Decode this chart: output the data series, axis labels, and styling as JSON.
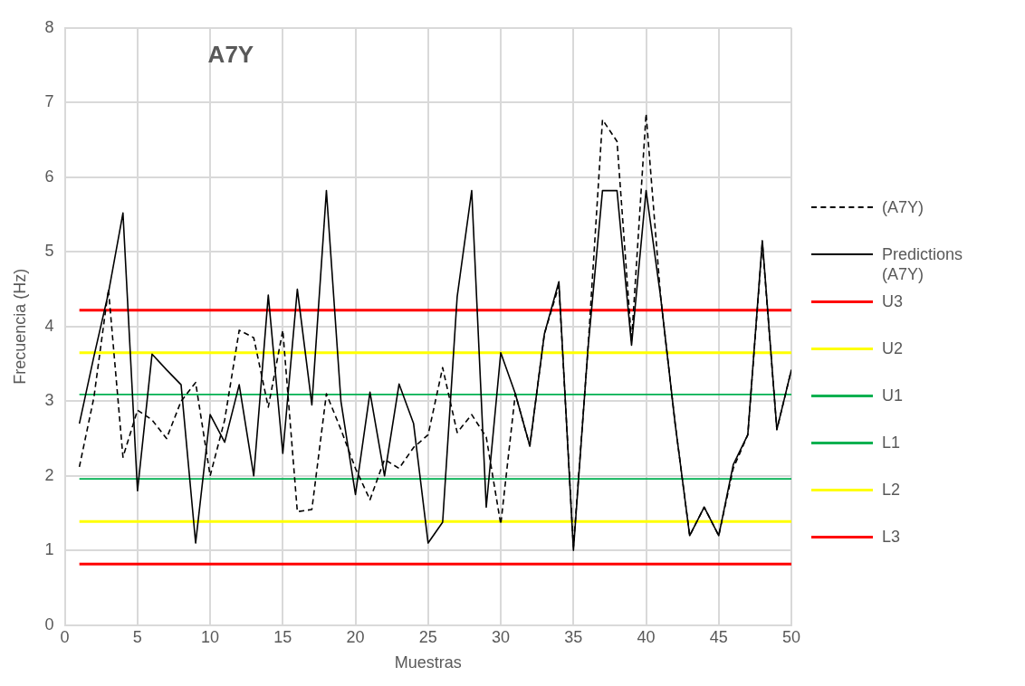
{
  "chart_data": {
    "type": "line",
    "title": "A7Y",
    "xlabel": "Muestras",
    "ylabel": "Frecuencia (Hz)",
    "x": [
      1,
      2,
      3,
      4,
      5,
      6,
      7,
      8,
      9,
      10,
      11,
      12,
      13,
      14,
      15,
      16,
      17,
      18,
      19,
      20,
      21,
      22,
      23,
      24,
      25,
      26,
      27,
      28,
      29,
      30,
      31,
      32,
      33,
      34,
      35,
      36,
      37,
      38,
      39,
      40,
      41,
      42,
      43,
      44,
      45,
      46,
      47,
      48,
      49,
      50
    ],
    "xlim": [
      0,
      50
    ],
    "xticks": [
      0,
      5,
      10,
      15,
      20,
      25,
      30,
      35,
      40,
      45,
      50
    ],
    "ylim": [
      0,
      8
    ],
    "yticks": [
      0,
      1,
      2,
      3,
      4,
      5,
      6,
      7,
      8
    ],
    "grid": true,
    "legend": "right",
    "marker": "none",
    "series": [
      {
        "name": "(A7Y)",
        "color": "#000000",
        "line_style": "dashed",
        "values": [
          2.12,
          3.05,
          4.5,
          2.25,
          2.88,
          2.75,
          2.5,
          3.0,
          3.25,
          2.0,
          2.75,
          3.95,
          3.85,
          2.92,
          3.95,
          1.52,
          1.55,
          3.1,
          2.62,
          2.1,
          1.68,
          2.22,
          2.1,
          2.38,
          2.55,
          3.45,
          2.58,
          2.82,
          2.52,
          1.35,
          3.1,
          2.4,
          3.9,
          4.55,
          1.05,
          3.7,
          6.77,
          6.48,
          3.8,
          6.85,
          4.4,
          2.7,
          1.2,
          1.58,
          1.2,
          2.1,
          2.55,
          5.12,
          2.62,
          3.42
        ]
      },
      {
        "name": "Predictions (A7Y)",
        "color": "#000000",
        "line_style": "solid",
        "values": [
          2.7,
          3.6,
          4.45,
          5.52,
          1.8,
          3.63,
          3.42,
          3.22,
          1.1,
          2.82,
          2.45,
          3.22,
          2.0,
          4.42,
          2.3,
          4.5,
          2.95,
          5.82,
          3.0,
          1.75,
          3.12,
          2.0,
          3.23,
          2.7,
          1.1,
          1.38,
          4.4,
          5.82,
          1.58,
          3.65,
          3.1,
          2.4,
          3.9,
          4.6,
          1.0,
          3.7,
          5.82,
          5.82,
          3.75,
          5.82,
          4.4,
          2.7,
          1.2,
          1.58,
          1.2,
          2.15,
          2.55,
          5.15,
          2.62,
          3.42
        ]
      },
      {
        "name": "U3",
        "color": "#ff0000",
        "values": [
          4.22,
          4.22,
          4.22,
          4.22,
          4.22,
          4.22,
          4.22,
          4.22,
          4.22,
          4.22,
          4.22,
          4.22,
          4.22,
          4.22,
          4.22,
          4.22,
          4.22,
          4.22,
          4.22,
          4.22,
          4.22,
          4.22,
          4.22,
          4.22,
          4.22,
          4.22,
          4.22,
          4.22,
          4.22,
          4.22,
          4.22,
          4.22,
          4.22,
          4.22,
          4.22,
          4.22,
          4.22,
          4.22,
          4.22,
          4.22,
          4.22,
          4.22,
          4.22,
          4.22,
          4.22,
          4.22,
          4.22,
          4.22,
          4.22,
          4.22
        ]
      },
      {
        "name": "U2",
        "color": "#ffff00",
        "values": [
          3.65,
          3.65,
          3.65,
          3.65,
          3.65,
          3.65,
          3.65,
          3.65,
          3.65,
          3.65,
          3.65,
          3.65,
          3.65,
          3.65,
          3.65,
          3.65,
          3.65,
          3.65,
          3.65,
          3.65,
          3.65,
          3.65,
          3.65,
          3.65,
          3.65,
          3.65,
          3.65,
          3.65,
          3.65,
          3.65,
          3.65,
          3.65,
          3.65,
          3.65,
          3.65,
          3.65,
          3.65,
          3.65,
          3.65,
          3.65,
          3.65,
          3.65,
          3.65,
          3.65,
          3.65,
          3.65,
          3.65,
          3.65,
          3.65,
          3.65
        ]
      },
      {
        "name": "U1",
        "color": "#00b050",
        "values": [
          3.09,
          3.09,
          3.09,
          3.09,
          3.09,
          3.09,
          3.09,
          3.09,
          3.09,
          3.09,
          3.09,
          3.09,
          3.09,
          3.09,
          3.09,
          3.09,
          3.09,
          3.09,
          3.09,
          3.09,
          3.09,
          3.09,
          3.09,
          3.09,
          3.09,
          3.09,
          3.09,
          3.09,
          3.09,
          3.09,
          3.09,
          3.09,
          3.09,
          3.09,
          3.09,
          3.09,
          3.09,
          3.09,
          3.09,
          3.09,
          3.09,
          3.09,
          3.09,
          3.09,
          3.09,
          3.09,
          3.09,
          3.09,
          3.09,
          3.09
        ]
      },
      {
        "name": "L1",
        "color": "#00b050",
        "values": [
          1.96,
          1.96,
          1.96,
          1.96,
          1.96,
          1.96,
          1.96,
          1.96,
          1.96,
          1.96,
          1.96,
          1.96,
          1.96,
          1.96,
          1.96,
          1.96,
          1.96,
          1.96,
          1.96,
          1.96,
          1.96,
          1.96,
          1.96,
          1.96,
          1.96,
          1.96,
          1.96,
          1.96,
          1.96,
          1.96,
          1.96,
          1.96,
          1.96,
          1.96,
          1.96,
          1.96,
          1.96,
          1.96,
          1.96,
          1.96,
          1.96,
          1.96,
          1.96,
          1.96,
          1.96,
          1.96,
          1.96,
          1.96,
          1.96,
          1.96
        ]
      },
      {
        "name": "L2",
        "color": "#ffff00",
        "values": [
          1.39,
          1.39,
          1.39,
          1.39,
          1.39,
          1.39,
          1.39,
          1.39,
          1.39,
          1.39,
          1.39,
          1.39,
          1.39,
          1.39,
          1.39,
          1.39,
          1.39,
          1.39,
          1.39,
          1.39,
          1.39,
          1.39,
          1.39,
          1.39,
          1.39,
          1.39,
          1.39,
          1.39,
          1.39,
          1.39,
          1.39,
          1.39,
          1.39,
          1.39,
          1.39,
          1.39,
          1.39,
          1.39,
          1.39,
          1.39,
          1.39,
          1.39,
          1.39,
          1.39,
          1.39,
          1.39,
          1.39,
          1.39,
          1.39,
          1.39
        ]
      },
      {
        "name": "L3",
        "color": "#ff0000",
        "values": [
          0.82,
          0.82,
          0.82,
          0.82,
          0.82,
          0.82,
          0.82,
          0.82,
          0.82,
          0.82,
          0.82,
          0.82,
          0.82,
          0.82,
          0.82,
          0.82,
          0.82,
          0.82,
          0.82,
          0.82,
          0.82,
          0.82,
          0.82,
          0.82,
          0.82,
          0.82,
          0.82,
          0.82,
          0.82,
          0.82,
          0.82,
          0.82,
          0.82,
          0.82,
          0.82,
          0.82,
          0.82,
          0.82,
          0.82,
          0.82,
          0.82,
          0.82,
          0.82,
          0.82,
          0.82,
          0.82,
          0.82,
          0.82,
          0.82,
          0.82
        ]
      }
    ]
  }
}
